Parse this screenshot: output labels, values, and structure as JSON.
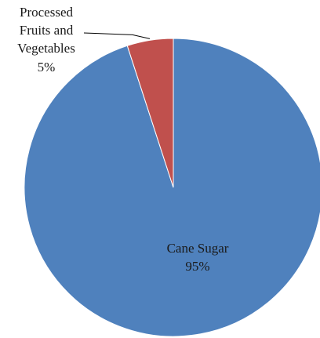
{
  "chart_data": {
    "type": "pie",
    "slices": [
      {
        "label": "Cane Sugar",
        "value": 95,
        "display": "95%",
        "color": "#4F81BD"
      },
      {
        "label": "Processed Fruits and Vegetables",
        "value": 5,
        "display": "5%",
        "color": "#C0504D"
      }
    ],
    "legend": "none",
    "data_labels": "category name and percentage"
  }
}
